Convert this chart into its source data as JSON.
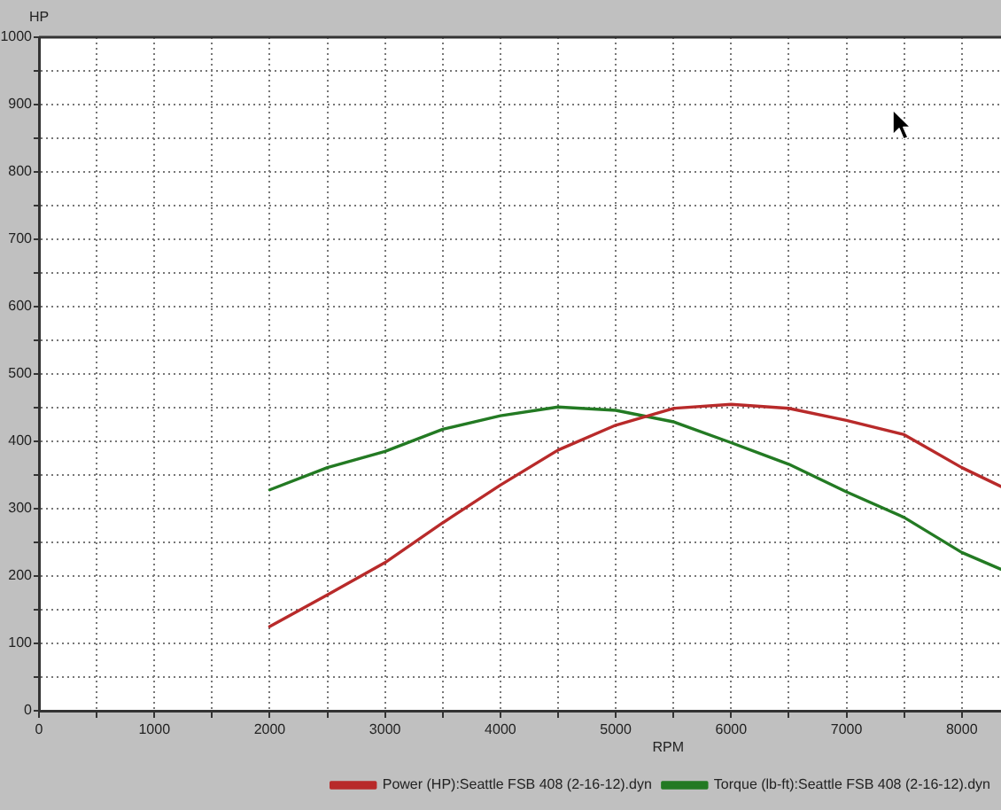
{
  "chart_data": {
    "type": "line",
    "xlabel": "RPM",
    "ylabel": "HP",
    "x": [
      2000,
      2500,
      3000,
      3500,
      4000,
      4500,
      5000,
      5500,
      6000,
      6500,
      7000,
      7500,
      8000,
      8340
    ],
    "series": [
      {
        "name": "Power (HP):Seattle FSB 408 (2-16-12).dyn",
        "color": "#b82a2a",
        "values": [
          125,
          172,
          220,
          279,
          335,
          387,
          424,
          449,
          455,
          449,
          431,
          410,
          361,
          333
        ]
      },
      {
        "name": "Torque (lb-ft):Seattle FSB 408 (2-16-12).dyn",
        "color": "#237a23",
        "values": [
          328,
          361,
          385,
          418,
          438,
          451,
          446,
          429,
          398,
          366,
          325,
          287,
          235,
          210
        ]
      }
    ],
    "xlim": [
      0,
      8340
    ],
    "xticks": [
      0,
      {
        "value": 500,
        "label": null
      },
      1000,
      {
        "value": 1500,
        "label": null
      },
      2000,
      {
        "value": 2500,
        "label": null
      },
      3000,
      {
        "value": 3500,
        "label": null
      },
      4000,
      {
        "value": 4500,
        "label": null
      },
      5000,
      {
        "value": 5500,
        "label": null
      },
      6000,
      {
        "value": 6500,
        "label": null
      },
      7000,
      {
        "value": 7500,
        "label": null
      },
      8000
    ],
    "ylim": [
      0,
      1000
    ],
    "yticks": [
      0,
      {
        "value": 50,
        "label": null
      },
      100,
      {
        "value": 150,
        "label": null
      },
      200,
      {
        "value": 250,
        "label": null
      },
      300,
      {
        "value": 350,
        "label": null
      },
      400,
      {
        "value": 450,
        "label": null
      },
      500,
      {
        "value": 550,
        "label": null
      },
      600,
      {
        "value": 650,
        "label": null
      },
      700,
      {
        "value": 750,
        "label": null
      },
      800,
      {
        "value": 850,
        "label": null
      },
      900,
      {
        "value": 950,
        "label": null
      },
      1000
    ],
    "grid": true,
    "legend": "bottom right",
    "marker": "none",
    "line_style": "solid"
  }
}
